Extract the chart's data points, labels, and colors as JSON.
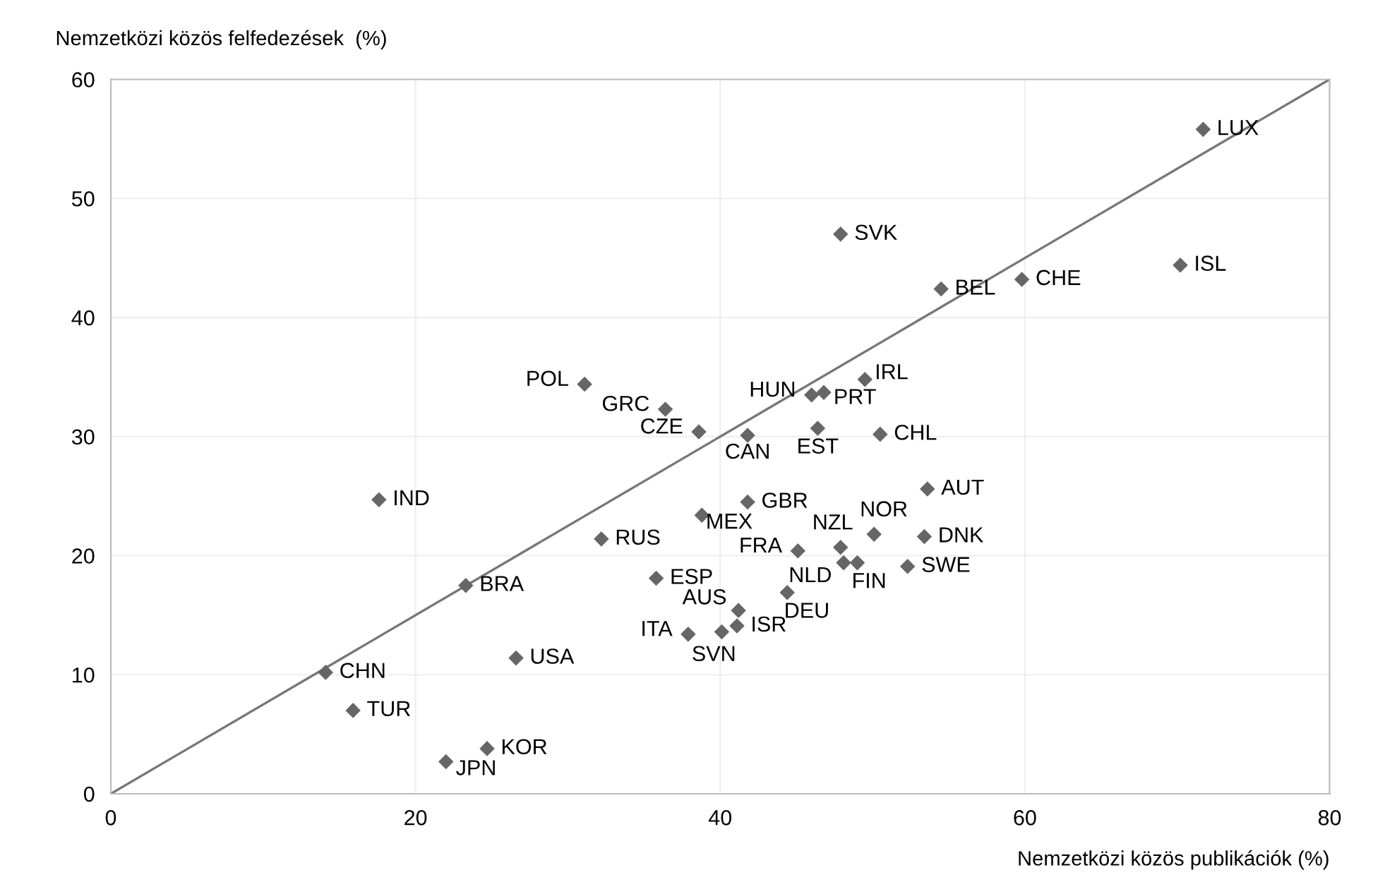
{
  "chart_data": {
    "type": "scatter",
    "xlabel": "Nemzetközi közös publikációk (%)",
    "ylabel": "Nemzetközi közös felfedezések  (%)",
    "xlim": [
      0,
      80
    ],
    "ylim": [
      0,
      60
    ],
    "xticks": [
      0,
      20,
      40,
      60,
      80
    ],
    "yticks": [
      0,
      10,
      20,
      30,
      40,
      50,
      60
    ],
    "grid": true,
    "marker": "diamond",
    "series": [
      {
        "color": "#666666",
        "x": [
          71.7,
          47.9,
          54.5,
          59.8,
          70.2,
          31.1,
          36.4,
          38.6,
          41.8,
          46.0,
          46.8,
          49.5,
          46.4,
          50.5,
          53.6,
          17.6,
          41.8,
          38.8,
          32.2,
          47.9,
          50.1,
          53.4,
          45.1,
          48.1,
          49.0,
          52.3,
          35.8,
          23.3,
          44.4,
          41.2,
          41.1,
          40.1,
          37.9,
          26.6,
          14.1,
          15.9,
          24.7,
          22.0
        ],
        "values": [
          55.8,
          47.0,
          42.4,
          43.2,
          44.4,
          34.4,
          32.3,
          30.4,
          30.1,
          33.5,
          33.7,
          34.8,
          30.7,
          30.2,
          25.6,
          24.7,
          24.5,
          23.4,
          21.4,
          20.7,
          21.8,
          21.6,
          20.4,
          19.4,
          19.4,
          19.1,
          18.1,
          17.5,
          16.9,
          15.4,
          14.1,
          13.6,
          13.4,
          11.4,
          10.2,
          7.0,
          3.8,
          2.7
        ]
      },
      {
        "type": "line",
        "color": "#777777",
        "marker": "none",
        "x": [
          0,
          80
        ],
        "values": [
          0,
          60
        ]
      }
    ],
    "annotations": [
      {
        "text": "LUX",
        "x": 71.7,
        "y": 55.8
      },
      {
        "text": "SVK",
        "x": 47.9,
        "y": 47.0
      },
      {
        "text": "BEL",
        "x": 54.5,
        "y": 42.4
      },
      {
        "text": "CHE",
        "x": 59.8,
        "y": 43.2
      },
      {
        "text": "ISL",
        "x": 70.2,
        "y": 44.4
      },
      {
        "text": "POL",
        "x": 31.1,
        "y": 34.4
      },
      {
        "text": "GRC",
        "x": 36.4,
        "y": 32.3
      },
      {
        "text": "CZE",
        "x": 38.6,
        "y": 30.4
      },
      {
        "text": "CAN",
        "x": 41.8,
        "y": 30.1
      },
      {
        "text": "HUN",
        "x": 46.0,
        "y": 33.5
      },
      {
        "text": "PRT",
        "x": 46.8,
        "y": 33.7
      },
      {
        "text": "IRL",
        "x": 49.5,
        "y": 34.8
      },
      {
        "text": "EST",
        "x": 46.4,
        "y": 30.7
      },
      {
        "text": "CHL",
        "x": 50.5,
        "y": 30.2
      },
      {
        "text": "AUT",
        "x": 53.6,
        "y": 25.6
      },
      {
        "text": "IND",
        "x": 17.6,
        "y": 24.7
      },
      {
        "text": "GBR",
        "x": 41.8,
        "y": 24.5
      },
      {
        "text": "MEX",
        "x": 38.8,
        "y": 23.4
      },
      {
        "text": "RUS",
        "x": 32.2,
        "y": 21.4
      },
      {
        "text": "NZL",
        "x": 47.9,
        "y": 20.7
      },
      {
        "text": "NOR",
        "x": 50.1,
        "y": 21.8
      },
      {
        "text": "DNK",
        "x": 53.4,
        "y": 21.6
      },
      {
        "text": "FRA",
        "x": 45.1,
        "y": 20.4
      },
      {
        "text": "NLD",
        "x": 48.1,
        "y": 19.4
      },
      {
        "text": "FIN",
        "x": 49.0,
        "y": 19.4
      },
      {
        "text": "SWE",
        "x": 52.3,
        "y": 19.1
      },
      {
        "text": "ESP",
        "x": 35.8,
        "y": 18.1
      },
      {
        "text": "BRA",
        "x": 23.3,
        "y": 17.5
      },
      {
        "text": "DEU",
        "x": 44.4,
        "y": 16.9
      },
      {
        "text": "AUS",
        "x": 41.2,
        "y": 15.4
      },
      {
        "text": "ISR",
        "x": 41.1,
        "y": 14.1
      },
      {
        "text": "SVN",
        "x": 40.1,
        "y": 13.6
      },
      {
        "text": "ITA",
        "x": 37.9,
        "y": 13.4
      },
      {
        "text": "USA",
        "x": 26.6,
        "y": 11.4
      },
      {
        "text": "CHN",
        "x": 14.1,
        "y": 10.2
      },
      {
        "text": "TUR",
        "x": 15.9,
        "y": 7.0
      },
      {
        "text": "KOR",
        "x": 24.7,
        "y": 3.8
      },
      {
        "text": "JPN",
        "x": 22.0,
        "y": 2.7
      }
    ]
  }
}
